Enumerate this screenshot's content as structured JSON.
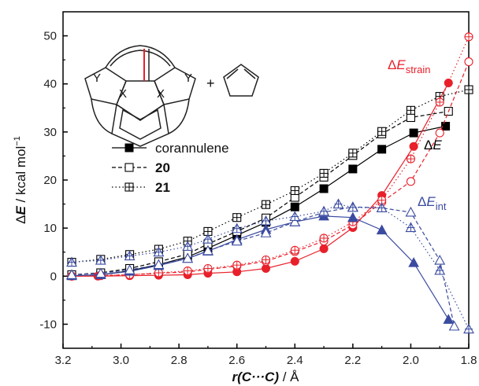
{
  "chart_data": {
    "type": "line",
    "xlabel": {
      "var": "r(C···C)",
      "unit": " / Å"
    },
    "ylabel": {
      "delta": "Δ",
      "var": "E",
      "unit": " / kcal mol",
      "sup": "−1"
    },
    "xlim": [
      3.2,
      1.8
    ],
    "ylim": [
      -15,
      55
    ],
    "x_ticks": [
      3.2,
      3.0,
      2.8,
      2.6,
      2.4,
      2.2,
      2.0,
      1.8
    ],
    "x_tick_labels": [
      "3.2",
      "3.0",
      "2.8",
      "2.6",
      "2.4",
      "2.2",
      "2.0",
      "1.8"
    ],
    "y_ticks": [
      -10,
      0,
      10,
      20,
      30,
      40,
      50
    ],
    "y_tick_labels": [
      "-10",
      "0",
      "10",
      "20",
      "30",
      "40",
      "50"
    ],
    "x_reversed": true,
    "grid": false,
    "legend": {
      "placement": "left-middle",
      "entries": [
        {
          "label": "corannulene",
          "style": "solid",
          "marker": "filled-square",
          "bold": false
        },
        {
          "label": "20",
          "style": "dashed",
          "marker": "open-square",
          "bold": true
        },
        {
          "label": "21",
          "style": "dotted",
          "marker": "crossed-square",
          "bold": true
        }
      ]
    },
    "annotations": {
      "dE": {
        "delta": "Δ",
        "var": "E",
        "sub": ""
      },
      "dEstrain": {
        "delta": "Δ",
        "var": "E",
        "sub": "strain"
      },
      "dEint": {
        "delta": "Δ",
        "var": "E",
        "sub": "int"
      },
      "scheme_labels": {
        "y_left": "Y",
        "x_left": "X",
        "x_right": "X",
        "y_right": "Y",
        "plus": "+"
      }
    },
    "colors": {
      "dE": "#000000",
      "strain": "#e8202a",
      "int": "#3a4ba0"
    },
    "series": [
      {
        "group": "dE",
        "compound": "corannulene",
        "x": [
          3.17,
          3.07,
          2.97,
          2.87,
          2.77,
          2.7,
          2.6,
          2.5,
          2.4,
          2.3,
          2.2,
          2.1,
          1.99,
          1.88
        ],
        "y": [
          0.1,
          0.3,
          1.1,
          2.4,
          4.0,
          5.8,
          8.5,
          11.2,
          14.4,
          18.2,
          22.3,
          26.4,
          29.8,
          31.2
        ]
      },
      {
        "group": "dE",
        "compound": "20",
        "x": [
          3.17,
          3.07,
          2.97,
          2.87,
          2.77,
          2.7,
          2.6,
          2.5,
          2.4,
          2.3,
          2.2,
          2.1,
          2.0,
          1.87
        ],
        "y": [
          0.3,
          0.7,
          1.6,
          3.0,
          4.6,
          6.7,
          9.3,
          12.1,
          16.4,
          20.6,
          25.1,
          29.6,
          33.0,
          34.3
        ]
      },
      {
        "group": "dE",
        "compound": "21",
        "x": [
          3.17,
          3.07,
          2.97,
          2.87,
          2.77,
          2.7,
          2.6,
          2.5,
          2.4,
          2.3,
          2.2,
          2.1,
          2.0,
          1.9,
          1.8
        ],
        "y": [
          2.9,
          3.5,
          4.5,
          5.6,
          7.3,
          9.3,
          12.2,
          14.9,
          17.8,
          21.4,
          25.6,
          30.1,
          34.5,
          37.4,
          38.8
        ]
      },
      {
        "group": "strain",
        "compound": "corannulene",
        "x": [
          3.17,
          3.08,
          2.97,
          2.87,
          2.77,
          2.7,
          2.6,
          2.5,
          2.4,
          2.3,
          2.2,
          2.1,
          1.99,
          1.87
        ],
        "y": [
          0.0,
          0.0,
          0.1,
          0.2,
          0.3,
          0.6,
          0.9,
          1.6,
          3.1,
          5.7,
          10.1,
          16.8,
          27.0,
          40.2
        ]
      },
      {
        "group": "strain",
        "compound": "20",
        "x": [
          3.17,
          3.07,
          2.97,
          2.87,
          2.77,
          2.7,
          2.6,
          2.5,
          2.4,
          2.3,
          2.2,
          2.1,
          2.0,
          1.9,
          1.8
        ],
        "y": [
          0.0,
          0.1,
          0.3,
          0.6,
          0.9,
          1.4,
          2.1,
          3.1,
          5.1,
          7.3,
          10.7,
          15.4,
          19.7,
          29.8,
          44.6
        ]
      },
      {
        "group": "strain",
        "compound": "21",
        "x": [
          3.17,
          3.07,
          2.97,
          2.87,
          2.77,
          2.7,
          2.6,
          2.5,
          2.4,
          2.3,
          2.2,
          2.1,
          2.0,
          1.9,
          1.8
        ],
        "y": [
          0.0,
          0.2,
          0.3,
          0.7,
          1.1,
          1.6,
          2.3,
          3.4,
          5.4,
          7.9,
          11.3,
          15.8,
          24.4,
          36.2,
          49.8
        ]
      },
      {
        "group": "int",
        "compound": "corannulene",
        "x": [
          3.17,
          3.07,
          2.97,
          2.87,
          2.77,
          2.7,
          2.6,
          2.5,
          2.4,
          2.3,
          2.2,
          2.1,
          1.99,
          1.87
        ],
        "y": [
          0.1,
          0.3,
          1.0,
          2.2,
          3.7,
          5.2,
          7.6,
          9.7,
          11.3,
          12.5,
          12.2,
          9.6,
          2.8,
          -9.0
        ]
      },
      {
        "group": "int",
        "compound": "20",
        "x": [
          3.17,
          3.07,
          2.97,
          2.87,
          2.77,
          2.7,
          2.6,
          2.5,
          2.4,
          2.3,
          2.2,
          2.1,
          2.0,
          1.9,
          1.85
        ],
        "y": [
          0.3,
          0.6,
          1.3,
          2.4,
          3.7,
          5.3,
          7.3,
          9.0,
          11.3,
          13.3,
          14.4,
          14.2,
          13.3,
          3.3,
          -10.4
        ]
      },
      {
        "group": "int",
        "compound": "21",
        "x": [
          3.17,
          3.07,
          2.97,
          2.87,
          2.77,
          2.7,
          2.6,
          2.5,
          2.4,
          2.3,
          2.25,
          2.2,
          2.1,
          2.0,
          1.9,
          1.8
        ],
        "y": [
          2.9,
          3.3,
          4.2,
          5.0,
          6.2,
          7.7,
          9.9,
          11.5,
          12.4,
          13.5,
          15.0,
          14.3,
          14.2,
          10.1,
          1.2,
          -11.0
        ]
      }
    ]
  }
}
